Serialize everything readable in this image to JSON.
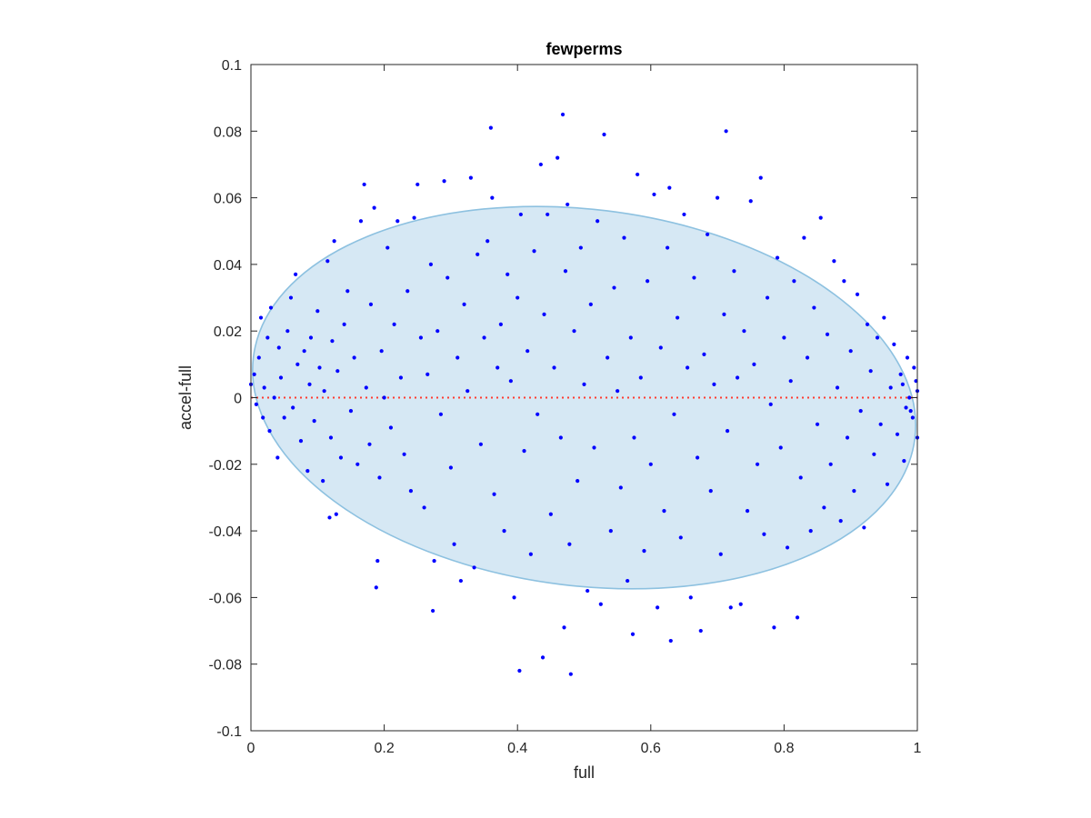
{
  "chart_data": {
    "type": "scatter",
    "title": "fewperms",
    "xlabel": "full",
    "ylabel": "accel-full",
    "xlim": [
      0,
      1
    ],
    "ylim": [
      -0.1,
      0.1
    ],
    "xticks": [
      0,
      0.2,
      0.4,
      0.6,
      0.8,
      1
    ],
    "xtick_labels": [
      "0",
      "0.2",
      "0.4",
      "0.6",
      "0.8",
      "1"
    ],
    "yticks": [
      -0.1,
      -0.08,
      -0.06,
      -0.04,
      -0.02,
      0,
      0.02,
      0.04,
      0.06,
      0.08,
      0.1
    ],
    "ytick_labels": [
      "-0.1",
      "-0.08",
      "-0.06",
      "-0.04",
      "-0.02",
      "0",
      "0.02",
      "0.04",
      "0.06",
      "0.08",
      "0.1"
    ],
    "grid": false,
    "legend": "none",
    "series": [
      {
        "marker_color": "#0000ff",
        "points": [
          [
            0.0,
            0.004
          ],
          [
            0.005,
            0.007
          ],
          [
            0.008,
            -0.002
          ],
          [
            0.012,
            0.012
          ],
          [
            0.015,
            0.024
          ],
          [
            0.018,
            -0.006
          ],
          [
            0.02,
            0.003
          ],
          [
            0.025,
            0.018
          ],
          [
            0.028,
            -0.01
          ],
          [
            0.03,
            0.027
          ],
          [
            0.035,
            0.0
          ],
          [
            0.04,
            -0.018
          ],
          [
            0.042,
            0.015
          ],
          [
            0.045,
            0.006
          ],
          [
            0.05,
            -0.006
          ],
          [
            0.055,
            0.02
          ],
          [
            0.06,
            0.03
          ],
          [
            0.063,
            -0.003
          ],
          [
            0.067,
            0.037
          ],
          [
            0.07,
            0.01
          ],
          [
            0.075,
            -0.013
          ],
          [
            0.08,
            0.014
          ],
          [
            0.085,
            -0.022
          ],
          [
            0.088,
            0.004
          ],
          [
            0.09,
            0.018
          ],
          [
            0.095,
            -0.007
          ],
          [
            0.1,
            0.026
          ],
          [
            0.103,
            0.009
          ],
          [
            0.108,
            -0.025
          ],
          [
            0.11,
            0.002
          ],
          [
            0.115,
            0.041
          ],
          [
            0.118,
            -0.036
          ],
          [
            0.12,
            -0.012
          ],
          [
            0.122,
            0.017
          ],
          [
            0.125,
            0.047
          ],
          [
            0.128,
            -0.035
          ],
          [
            0.13,
            0.008
          ],
          [
            0.135,
            -0.018
          ],
          [
            0.14,
            0.022
          ],
          [
            0.145,
            0.032
          ],
          [
            0.15,
            -0.004
          ],
          [
            0.155,
            0.012
          ],
          [
            0.16,
            -0.02
          ],
          [
            0.165,
            0.053
          ],
          [
            0.17,
            0.064
          ],
          [
            0.173,
            0.003
          ],
          [
            0.178,
            -0.014
          ],
          [
            0.18,
            0.028
          ],
          [
            0.185,
            0.057
          ],
          [
            0.188,
            -0.057
          ],
          [
            0.19,
            -0.049
          ],
          [
            0.193,
            -0.024
          ],
          [
            0.196,
            0.014
          ],
          [
            0.2,
            0.0
          ],
          [
            0.205,
            0.045
          ],
          [
            0.21,
            -0.009
          ],
          [
            0.215,
            0.022
          ],
          [
            0.22,
            0.053
          ],
          [
            0.225,
            0.006
          ],
          [
            0.23,
            -0.017
          ],
          [
            0.235,
            0.032
          ],
          [
            0.24,
            -0.028
          ],
          [
            0.245,
            0.054
          ],
          [
            0.25,
            0.064
          ],
          [
            0.255,
            0.018
          ],
          [
            0.26,
            -0.033
          ],
          [
            0.265,
            0.007
          ],
          [
            0.27,
            0.04
          ],
          [
            0.273,
            -0.064
          ],
          [
            0.275,
            -0.049
          ],
          [
            0.28,
            0.02
          ],
          [
            0.285,
            -0.005
          ],
          [
            0.29,
            0.065
          ],
          [
            0.295,
            0.036
          ],
          [
            0.3,
            -0.021
          ],
          [
            0.305,
            -0.044
          ],
          [
            0.31,
            0.012
          ],
          [
            0.315,
            -0.055
          ],
          [
            0.32,
            0.028
          ],
          [
            0.325,
            0.002
          ],
          [
            0.33,
            0.066
          ],
          [
            0.335,
            -0.051
          ],
          [
            0.34,
            0.043
          ],
          [
            0.345,
            -0.014
          ],
          [
            0.35,
            0.018
          ],
          [
            0.355,
            0.047
          ],
          [
            0.36,
            0.081
          ],
          [
            0.362,
            0.06
          ],
          [
            0.365,
            -0.029
          ],
          [
            0.37,
            0.009
          ],
          [
            0.375,
            0.022
          ],
          [
            0.38,
            -0.04
          ],
          [
            0.385,
            0.037
          ],
          [
            0.39,
            0.005
          ],
          [
            0.395,
            -0.06
          ],
          [
            0.4,
            0.03
          ],
          [
            0.403,
            -0.082
          ],
          [
            0.405,
            0.055
          ],
          [
            0.41,
            -0.016
          ],
          [
            0.415,
            0.014
          ],
          [
            0.42,
            -0.047
          ],
          [
            0.425,
            0.044
          ],
          [
            0.43,
            -0.005
          ],
          [
            0.435,
            0.07
          ],
          [
            0.438,
            -0.078
          ],
          [
            0.44,
            0.025
          ],
          [
            0.445,
            0.055
          ],
          [
            0.45,
            -0.035
          ],
          [
            0.455,
            0.009
          ],
          [
            0.46,
            0.072
          ],
          [
            0.465,
            -0.012
          ],
          [
            0.468,
            0.085
          ],
          [
            0.47,
            -0.069
          ],
          [
            0.472,
            0.038
          ],
          [
            0.475,
            0.058
          ],
          [
            0.478,
            -0.044
          ],
          [
            0.48,
            -0.083
          ],
          [
            0.485,
            0.02
          ],
          [
            0.49,
            -0.025
          ],
          [
            0.495,
            0.045
          ],
          [
            0.5,
            0.004
          ],
          [
            0.505,
            -0.058
          ],
          [
            0.51,
            0.028
          ],
          [
            0.515,
            -0.015
          ],
          [
            0.52,
            0.053
          ],
          [
            0.525,
            -0.062
          ],
          [
            0.53,
            0.079
          ],
          [
            0.535,
            0.012
          ],
          [
            0.54,
            -0.04
          ],
          [
            0.545,
            0.033
          ],
          [
            0.55,
            0.002
          ],
          [
            0.555,
            -0.027
          ],
          [
            0.56,
            0.048
          ],
          [
            0.565,
            -0.055
          ],
          [
            0.57,
            0.018
          ],
          [
            0.573,
            -0.071
          ],
          [
            0.575,
            -0.012
          ],
          [
            0.58,
            0.067
          ],
          [
            0.585,
            0.006
          ],
          [
            0.59,
            -0.046
          ],
          [
            0.595,
            0.035
          ],
          [
            0.6,
            -0.02
          ],
          [
            0.605,
            0.061
          ],
          [
            0.61,
            -0.063
          ],
          [
            0.615,
            0.015
          ],
          [
            0.62,
            -0.034
          ],
          [
            0.625,
            0.045
          ],
          [
            0.628,
            0.063
          ],
          [
            0.63,
            -0.073
          ],
          [
            0.635,
            -0.005
          ],
          [
            0.64,
            0.024
          ],
          [
            0.645,
            -0.042
          ],
          [
            0.65,
            0.055
          ],
          [
            0.655,
            0.009
          ],
          [
            0.66,
            -0.06
          ],
          [
            0.665,
            0.036
          ],
          [
            0.67,
            -0.018
          ],
          [
            0.675,
            -0.07
          ],
          [
            0.68,
            0.013
          ],
          [
            0.685,
            0.049
          ],
          [
            0.69,
            -0.028
          ],
          [
            0.695,
            0.004
          ],
          [
            0.7,
            0.06
          ],
          [
            0.705,
            -0.047
          ],
          [
            0.71,
            0.025
          ],
          [
            0.713,
            0.08
          ],
          [
            0.715,
            -0.01
          ],
          [
            0.72,
            -0.063
          ],
          [
            0.725,
            0.038
          ],
          [
            0.73,
            0.006
          ],
          [
            0.735,
            -0.062
          ],
          [
            0.74,
            0.02
          ],
          [
            0.745,
            -0.034
          ],
          [
            0.75,
            0.059
          ],
          [
            0.755,
            0.01
          ],
          [
            0.76,
            -0.02
          ],
          [
            0.765,
            0.066
          ],
          [
            0.77,
            -0.041
          ],
          [
            0.775,
            0.03
          ],
          [
            0.78,
            -0.002
          ],
          [
            0.785,
            -0.069
          ],
          [
            0.79,
            0.042
          ],
          [
            0.795,
            -0.015
          ],
          [
            0.8,
            0.018
          ],
          [
            0.805,
            -0.045
          ],
          [
            0.81,
            0.005
          ],
          [
            0.815,
            0.035
          ],
          [
            0.82,
            -0.066
          ],
          [
            0.825,
            -0.024
          ],
          [
            0.83,
            0.048
          ],
          [
            0.835,
            0.012
          ],
          [
            0.84,
            -0.04
          ],
          [
            0.845,
            0.027
          ],
          [
            0.85,
            -0.008
          ],
          [
            0.855,
            0.054
          ],
          [
            0.86,
            -0.033
          ],
          [
            0.865,
            0.019
          ],
          [
            0.87,
            -0.02
          ],
          [
            0.875,
            0.041
          ],
          [
            0.88,
            0.003
          ],
          [
            0.885,
            -0.037
          ],
          [
            0.89,
            0.035
          ],
          [
            0.895,
            -0.012
          ],
          [
            0.9,
            0.014
          ],
          [
            0.905,
            -0.028
          ],
          [
            0.91,
            0.031
          ],
          [
            0.915,
            -0.004
          ],
          [
            0.92,
            -0.039
          ],
          [
            0.925,
            0.022
          ],
          [
            0.93,
            0.008
          ],
          [
            0.935,
            -0.017
          ],
          [
            0.94,
            0.018
          ],
          [
            0.945,
            -0.008
          ],
          [
            0.95,
            0.024
          ],
          [
            0.955,
            -0.026
          ],
          [
            0.96,
            0.003
          ],
          [
            0.965,
            0.016
          ],
          [
            0.97,
            -0.011
          ],
          [
            0.975,
            0.007
          ],
          [
            0.98,
            -0.019
          ],
          [
            0.985,
            0.012
          ],
          [
            0.99,
            -0.004
          ],
          [
            0.995,
            0.009
          ],
          [
            1.0,
            -0.012
          ],
          [
            1.0,
            0.002
          ],
          [
            0.998,
            0.005
          ],
          [
            0.993,
            -0.006
          ],
          [
            0.988,
            0.0
          ],
          [
            0.983,
            -0.003
          ],
          [
            0.978,
            0.004
          ]
        ]
      }
    ],
    "annotations": [
      {
        "type": "ellipse",
        "center_x": 0.5,
        "center_y": 0.0,
        "width": 1.0,
        "height": 0.113,
        "angle_deg": 7,
        "fill": "#d6e8f4",
        "edge": "#8dc1e0"
      },
      {
        "type": "hline",
        "y": 0,
        "x_from": 0,
        "x_to": 1,
        "style": "dotted",
        "color": "#ff3b30"
      }
    ],
    "colors": {
      "axis": "#262626",
      "markers": "#0000ff"
    }
  }
}
